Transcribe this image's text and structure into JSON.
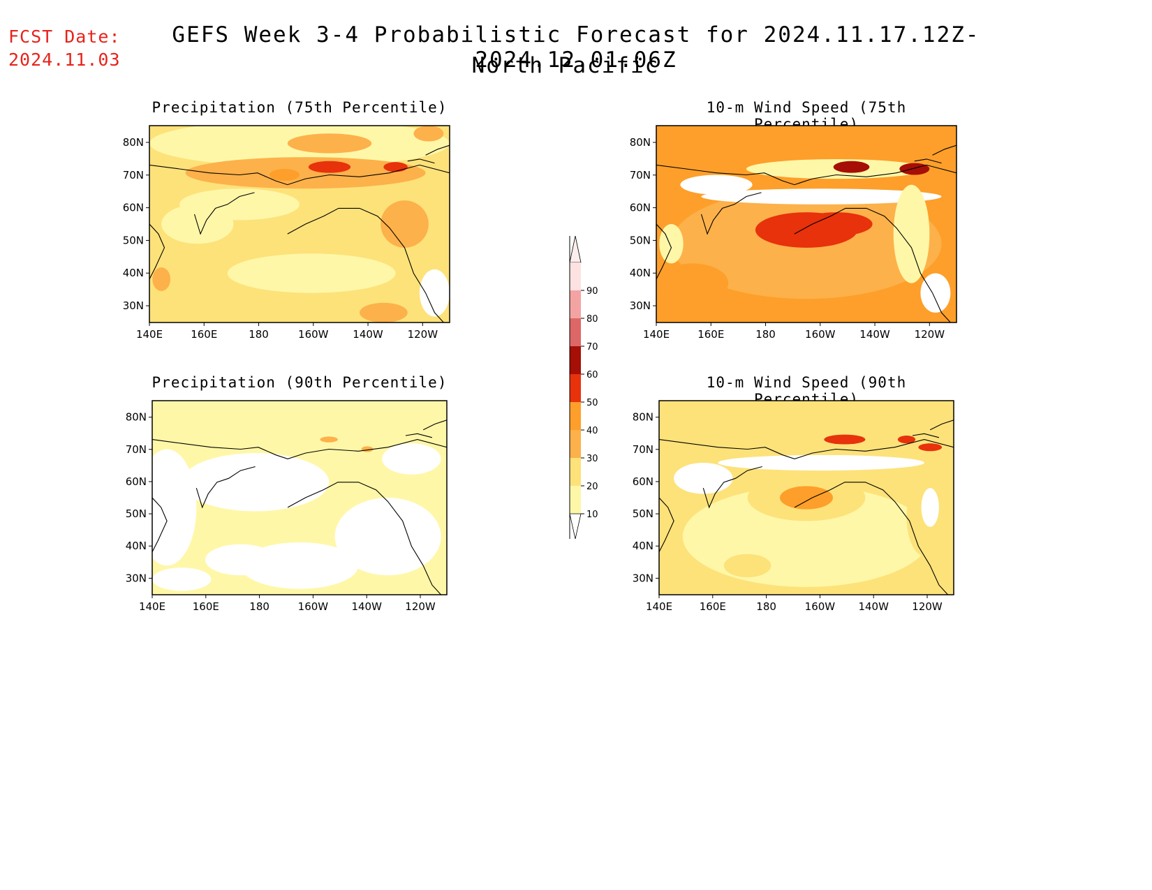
{
  "header": {
    "fcst_label": "FCST Date:",
    "fcst_date": "2024.11.03",
    "title": "GEFS Week 3-4 Probabilistic Forecast for 2024.11.17.12Z-2024.12.01.06Z",
    "subtitle": "North Pacific"
  },
  "colors": {
    "white": "#ffffff",
    "c10_20": "#fff7a8",
    "c20_30": "#fde27a",
    "c30_40": "#fdb14a",
    "c40_50": "#fd9f2a",
    "c50_60": "#e7320c",
    "c60_70": "#a50f06",
    "c70_80": "#dd6767",
    "c80_90": "#f4a3a3",
    "c90_plus": "#fde2e2"
  },
  "chart_data": [
    {
      "type": "heatmap",
      "title": "Precipitation (75th Percentile)",
      "x_ticks": [
        "140E",
        "160E",
        "180",
        "160W",
        "140W",
        "120W"
      ],
      "y_ticks": [
        "80N",
        "70N",
        "60N",
        "50N",
        "40N",
        "30N"
      ],
      "level": "c20_30"
    },
    {
      "type": "heatmap",
      "title": "10-m Wind Speed (75th Percentile)",
      "x_ticks": [
        "140E",
        "160E",
        "180",
        "160W",
        "140W",
        "120W"
      ],
      "y_ticks": [
        "80N",
        "70N",
        "60N",
        "50N",
        "40N",
        "30N"
      ],
      "level": "c40_50"
    },
    {
      "type": "heatmap",
      "title": "Precipitation (90th Percentile)",
      "x_ticks": [
        "140E",
        "160E",
        "180",
        "160W",
        "140W",
        "120W"
      ],
      "y_ticks": [
        "80N",
        "70N",
        "60N",
        "50N",
        "40N",
        "30N"
      ],
      "level": "c10_20"
    },
    {
      "type": "heatmap",
      "title": "10-m Wind Speed (90th Percentile)",
      "x_ticks": [
        "140E",
        "160E",
        "180",
        "160W",
        "140W",
        "120W"
      ],
      "y_ticks": [
        "80N",
        "70N",
        "60N",
        "50N",
        "40N",
        "30N"
      ],
      "level": "c20_30"
    }
  ],
  "colorbar": {
    "labels": [
      "10",
      "20",
      "30",
      "40",
      "50",
      "60",
      "70",
      "80",
      "90"
    ]
  }
}
